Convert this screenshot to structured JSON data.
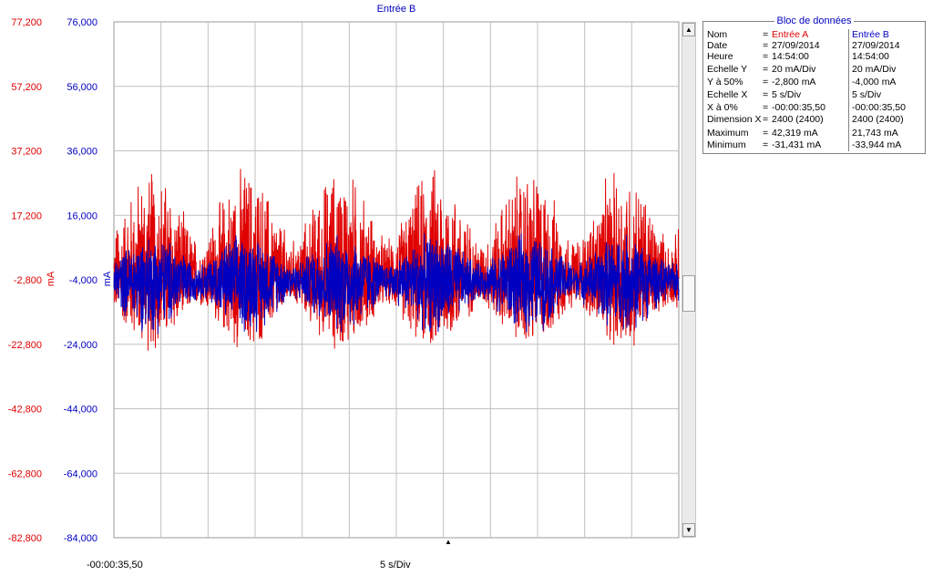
{
  "chart_data": {
    "type": "line",
    "title": "Entrée B",
    "y_axis_a": {
      "unit": "mA",
      "color": "#e00000",
      "ticks": [
        "77,200",
        "57,200",
        "37,200",
        "17,200",
        "-2,800",
        "-22,800",
        "-42,800",
        "-62,800",
        "-82,800"
      ],
      "ylim": [
        -82.8,
        77.2
      ]
    },
    "y_axis_b": {
      "unit": "mA",
      "color": "#0000c0",
      "ticks": [
        "76,000",
        "56,000",
        "36,000",
        "16,000",
        "-4,000",
        "-24,000",
        "-44,000",
        "-64,000",
        "-84,000"
      ],
      "ylim": [
        -84,
        76
      ]
    },
    "x_axis": {
      "start_label": "-00:00:35,50",
      "scale_label": "5 s/Div",
      "divisions": 12,
      "points": 2400
    },
    "series": [
      {
        "name": "Entrée A",
        "color": "#e00000",
        "offset": -2.8,
        "maximum": 42.319,
        "minimum": -31.431,
        "bursts": 6
      },
      {
        "name": "Entrée B",
        "color": "#0000c0",
        "offset": -4.0,
        "maximum": 21.743,
        "minimum": -33.944,
        "bursts": 6
      }
    ],
    "grid": true
  },
  "data_block": {
    "title": "Bloc de données",
    "rows": [
      {
        "label": "Nom",
        "eq": "=",
        "a": "Entrée A",
        "b": "Entrée B"
      },
      {
        "label": "Date",
        "eq": "=",
        "a": "27/09/2014",
        "b": "27/09/2014"
      },
      {
        "label": "Heure",
        "eq": "=",
        "a": "14:54:00",
        "b": "14:54:00"
      },
      {
        "label": "Echelle Y",
        "eq": "=",
        "a": "20      mA/Div",
        "b": "20      mA/Div"
      },
      {
        "label": "Y à 50%",
        "eq": "=",
        "a": "-2,800 mA",
        "b": "-4,000 mA"
      },
      {
        "label": "Echelle X",
        "eq": "=",
        "a": "5       s/Div",
        "b": "5       s/Div"
      },
      {
        "label": "X à 0%",
        "eq": "=",
        "a": "-00:00:35,50",
        "b": "-00:00:35,50"
      },
      {
        "label": "Dimension X",
        "eq": "=",
        "a": "2400 (2400)",
        "b": "2400 (2400)"
      },
      {
        "label": "Maximum",
        "eq": "=",
        "a": "42,319 mA",
        "b": "21,743 mA"
      },
      {
        "label": "Minimum",
        "eq": "=",
        "a": "-31,431 mA",
        "b": "-33,944 mA"
      }
    ]
  },
  "scrollbar": {
    "up": "▲",
    "down": "▼"
  },
  "cursor_marker": "▲"
}
